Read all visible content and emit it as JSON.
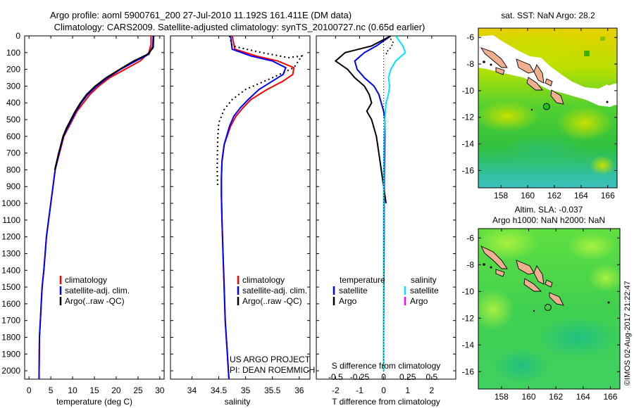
{
  "header": {
    "line1": "Argo profile: aoml 5900761_200 27-Jul-2010 11.192S 161.411E (DM data)",
    "line2": "Climatology: CARS2009. Satellite-adjusted climatology: synTS_20100727.nc (0.65d earlier)"
  },
  "colors": {
    "climatology": "#ff0000",
    "satellite": "#0000ff",
    "argo": "#000000",
    "sal_satellite": "#00e5ff",
    "sal_argo": "#ff00ff"
  },
  "project_note": {
    "line1": "US ARGO PROJECT",
    "line2": "PI: DEAN ROEMMICH"
  },
  "timestamp": "©IMOS 02-Aug-2017 21:22:47",
  "chart_data": [
    {
      "id": "temperature",
      "type": "line",
      "xlabel": "temperature (deg C)",
      "xlim": [
        -1,
        31
      ],
      "ylim": [
        0,
        2050
      ],
      "xticks": [
        0,
        5,
        10,
        15,
        20,
        25,
        30
      ],
      "yticks": [
        0,
        100,
        200,
        300,
        400,
        500,
        600,
        700,
        800,
        900,
        1000,
        1100,
        1200,
        1300,
        1400,
        1500,
        1600,
        1700,
        1800,
        1900,
        2000
      ],
      "legend": [
        "climatology",
        "satellite-adj. clim.",
        "Argo(..raw -QC)"
      ],
      "series": [
        {
          "name": "climatology",
          "color": "#ff0000",
          "x": [
            28.0,
            28.0,
            27.5,
            25.5,
            22.0,
            18.5,
            16.0,
            14.0,
            12.5,
            11.0,
            10.0,
            9.0,
            8.0,
            7.0,
            6.0,
            5.5,
            5.0,
            4.5,
            4.0,
            3.7,
            3.4,
            3.0,
            2.8,
            2.6,
            2.4,
            2.3
          ],
          "y": [
            0,
            50,
            100,
            150,
            200,
            250,
            300,
            350,
            400,
            450,
            500,
            550,
            600,
            700,
            800,
            900,
            1000,
            1100,
            1200,
            1300,
            1400,
            1500,
            1600,
            1700,
            1800,
            2050
          ]
        },
        {
          "name": "satellite-adj. clim.",
          "color": "#0000ff",
          "x": [
            28.5,
            28.4,
            27.5,
            24.5,
            21.0,
            18.0,
            15.5,
            13.5,
            12.0,
            10.8,
            9.8,
            8.8,
            7.9,
            6.9,
            6.0,
            5.5,
            5.0,
            4.5,
            4.0,
            3.7,
            3.4,
            3.0,
            2.8,
            2.6,
            2.4,
            2.3
          ],
          "y": [
            0,
            60,
            110,
            150,
            200,
            250,
            300,
            350,
            400,
            450,
            500,
            550,
            600,
            700,
            800,
            900,
            1000,
            1100,
            1200,
            1300,
            1400,
            1500,
            1600,
            1700,
            1800,
            2050
          ]
        },
        {
          "name": "Argo(..raw -QC)",
          "color": "#000000",
          "x": [
            28.6,
            28.5,
            27.2,
            24.0,
            20.8,
            17.7,
            15.2,
            13.2,
            11.8,
            10.6,
            9.6,
            8.6,
            7.8,
            6.8,
            5.9
          ],
          "y": [
            0,
            70,
            110,
            150,
            200,
            250,
            300,
            350,
            400,
            450,
            500,
            550,
            600,
            700,
            800
          ]
        }
      ]
    },
    {
      "id": "salinity",
      "type": "line",
      "xlabel": "salinity",
      "xlim": [
        33.6,
        36.2
      ],
      "ylim": [
        0,
        2050
      ],
      "xticks": [
        34,
        34.5,
        35,
        35.5,
        36
      ],
      "legend": [
        "climatology",
        "satellite-adj. clim.",
        "Argo(..raw -QC)"
      ],
      "series": [
        {
          "name": "climatology",
          "color": "#ff0000",
          "x": [
            34.75,
            34.8,
            35.2,
            35.6,
            35.9,
            35.88,
            35.7,
            35.4,
            35.1,
            34.95,
            34.82,
            34.72,
            34.6,
            34.56,
            34.55,
            34.55,
            34.56,
            34.58,
            34.6,
            34.62,
            34.65,
            34.67,
            34.68,
            34.69
          ],
          "y": [
            0,
            80,
            120,
            150,
            190,
            230,
            270,
            320,
            380,
            430,
            480,
            540,
            650,
            750,
            850,
            950,
            1100,
            1300,
            1500,
            1700,
            1850,
            1950,
            2000,
            2050
          ]
        },
        {
          "name": "satellite-adj. clim.",
          "color": "#0000ff",
          "x": [
            34.72,
            34.75,
            35.1,
            35.5,
            35.75,
            35.7,
            35.5,
            35.25,
            35.05,
            34.9,
            34.78,
            34.7,
            34.6,
            34.56,
            34.55,
            34.55,
            34.56,
            34.58,
            34.6,
            34.62,
            34.65,
            34.67,
            34.68,
            34.69
          ],
          "y": [
            0,
            80,
            120,
            150,
            190,
            230,
            270,
            320,
            380,
            430,
            480,
            540,
            650,
            750,
            850,
            950,
            1100,
            1300,
            1500,
            1700,
            1850,
            1950,
            2000,
            2050
          ]
        },
        {
          "name": "Argo(..raw -QC)",
          "color": "#000000",
          "x": [
            34.7,
            34.75,
            35.3,
            35.8,
            36.05,
            35.9,
            35.5,
            35.0,
            34.75,
            34.6,
            34.5,
            34.48,
            34.47,
            34.48
          ],
          "y": [
            0,
            60,
            100,
            130,
            120,
            190,
            250,
            320,
            380,
            440,
            520,
            620,
            800,
            900
          ]
        }
      ]
    },
    {
      "id": "difference",
      "type": "line",
      "xlabel": "T difference from climatology",
      "xlabel_top": "S difference from climatology",
      "xlim": [
        -2.8,
        3.0
      ],
      "ylim": [
        0,
        2050
      ],
      "xticks": [
        -2,
        -1,
        0,
        1,
        2
      ],
      "s_ticks": [
        {
          "label": "-0.5",
          "t": -2
        },
        {
          "label": "-0.25",
          "t": -1
        },
        {
          "label": "0",
          "t": 0
        },
        {
          "label": "0.25",
          "t": 1
        },
        {
          "label": "0.5",
          "t": 2
        }
      ],
      "legend": {
        "temperature_header": "temperature",
        "salinity_header": "salinity",
        "entries": [
          "satellite",
          "Argo",
          "satellite",
          "Argo"
        ]
      },
      "series": [
        {
          "name": "satellite",
          "group": "temperature",
          "color": "#0000ff",
          "x": [
            0.3,
            -0.3,
            -0.8,
            -1.2,
            -1.1,
            -0.8,
            -0.4,
            -0.2,
            -0.1,
            0.0,
            0.05,
            0.05,
            0.03,
            0.02,
            0.02,
            0.01,
            0.0,
            0.0
          ],
          "y": [
            0,
            60,
            100,
            150,
            200,
            250,
            300,
            350,
            400,
            450,
            500,
            600,
            800,
            1000,
            1200,
            1500,
            1800,
            2000
          ]
        },
        {
          "name": "Argo",
          "group": "temperature",
          "color": "#000000",
          "x": [
            0.3,
            -0.5,
            -1.6,
            -2.0,
            -1.5,
            -1.2,
            -0.8,
            -0.6,
            -0.5,
            -0.7,
            -0.5,
            -0.3,
            -0.2,
            -0.1,
            0.0,
            0.1
          ],
          "y": [
            0,
            60,
            100,
            150,
            200,
            250,
            300,
            350,
            400,
            450,
            500,
            600,
            700,
            800,
            900,
            1000
          ]
        },
        {
          "name": "satellite",
          "group": "salinity",
          "color": "#00e5ff",
          "x": [
            0.5,
            0.8,
            0.9,
            0.5,
            0.3,
            0.2,
            0.25,
            0.2,
            0.1,
            0.05,
            0.02,
            0.0,
            0.0,
            0.0,
            0.0
          ],
          "y": [
            0,
            60,
            100,
            150,
            200,
            250,
            300,
            350,
            400,
            500,
            600,
            800,
            1200,
            1600,
            2000
          ]
        },
        {
          "name": "Argo",
          "group": "salinity",
          "color": "#000000",
          "x": [
            0.2,
            0.4,
            0.3,
            0.1,
            0.15
          ],
          "y": [
            0,
            40,
            70,
            100,
            120
          ]
        }
      ]
    },
    {
      "id": "sst-map",
      "type": "heatmap",
      "title": "sat. SST: NaN Argo: 28.2",
      "xlim": [
        156.3,
        166.7
      ],
      "ylim": [
        -17.3,
        -5.3
      ],
      "xticks": [
        158,
        160,
        162,
        164,
        166
      ],
      "yticks": [
        -6,
        -8,
        -10,
        -12,
        -14,
        -16
      ],
      "argo_position": {
        "lon": 161.411,
        "lat": -11.192
      }
    },
    {
      "id": "sla-map",
      "type": "heatmap",
      "title_line1": "Altim. SLA: -0.037",
      "title_line2": "Argo h1000: NaN h2000: NaN",
      "xlim": [
        156.3,
        166.7
      ],
      "ylim": [
        -17.3,
        -5.3
      ],
      "xticks": [
        158,
        160,
        162,
        164,
        166
      ],
      "yticks": [
        -6,
        -8,
        -10,
        -12,
        -14,
        -16
      ],
      "argo_position": {
        "lon": 161.411,
        "lat": -11.192
      }
    }
  ]
}
